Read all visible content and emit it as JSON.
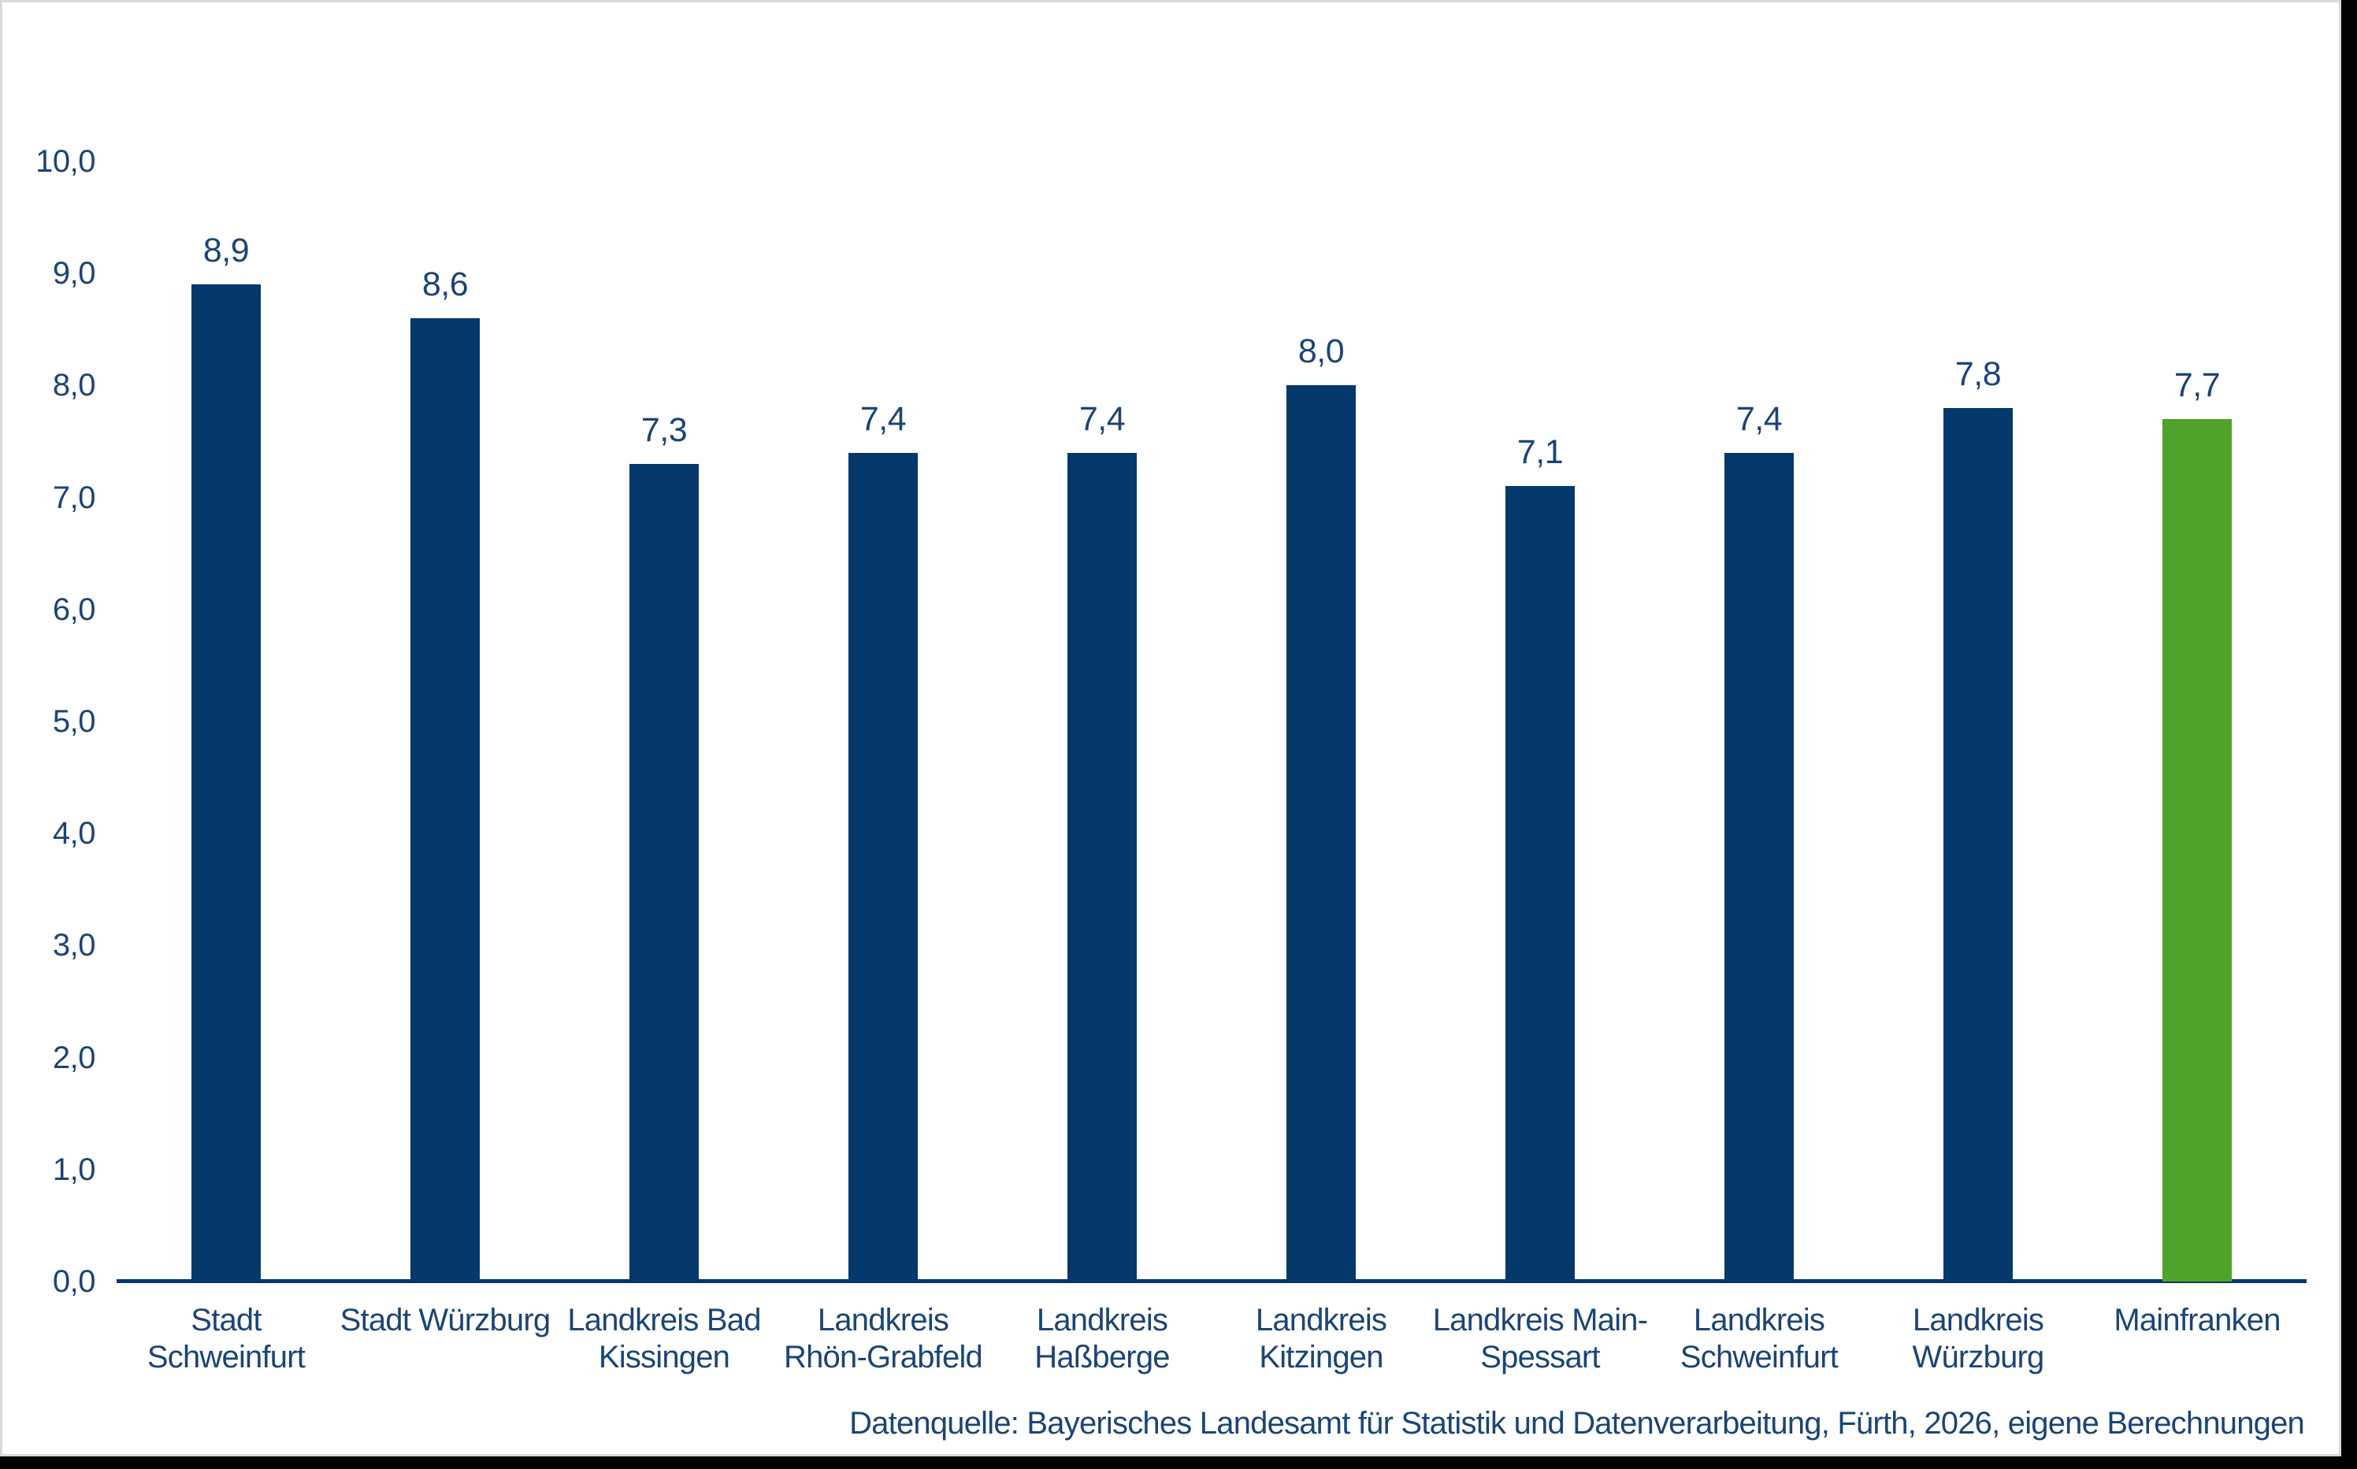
{
  "chart_data": {
    "type": "bar",
    "title": "",
    "xlabel": "",
    "ylabel": "",
    "categories": [
      "Stadt Schweinfurt",
      "Stadt Würzburg",
      "Landkreis Bad Kissingen",
      "Landkreis Rhön-Grabfeld",
      "Landkreis Haßberge",
      "Landkreis Kitzingen",
      "Landkreis Main-Spessart",
      "Landkreis Schweinfurt",
      "Landkreis Würzburg",
      "Mainfranken"
    ],
    "values": [
      8.9,
      8.6,
      7.3,
      7.4,
      7.4,
      8.0,
      7.1,
      7.4,
      7.8,
      7.7
    ],
    "value_labels": [
      "8,9",
      "8,6",
      "7,3",
      "7,4",
      "7,4",
      "8,0",
      "7,1",
      "7,4",
      "7,8",
      "7,7"
    ],
    "ylim": [
      0,
      10
    ],
    "ytick_labels": [
      "0,0",
      "1,0",
      "2,0",
      "3,0",
      "4,0",
      "5,0",
      "6,0",
      "7,0",
      "8,0",
      "9,0",
      "10,0"
    ],
    "grid": false,
    "legend": false,
    "bar_color": "#05386b",
    "highlight_color": "#4fa32a",
    "highlight_index": 9,
    "text_color": "#1a4575",
    "axis_color": "#05386b",
    "source": "Datenquelle: Bayerisches Landesamt für Statistik und Datenverarbeitung, Fürth, 2026, eigene Berechnungen"
  }
}
